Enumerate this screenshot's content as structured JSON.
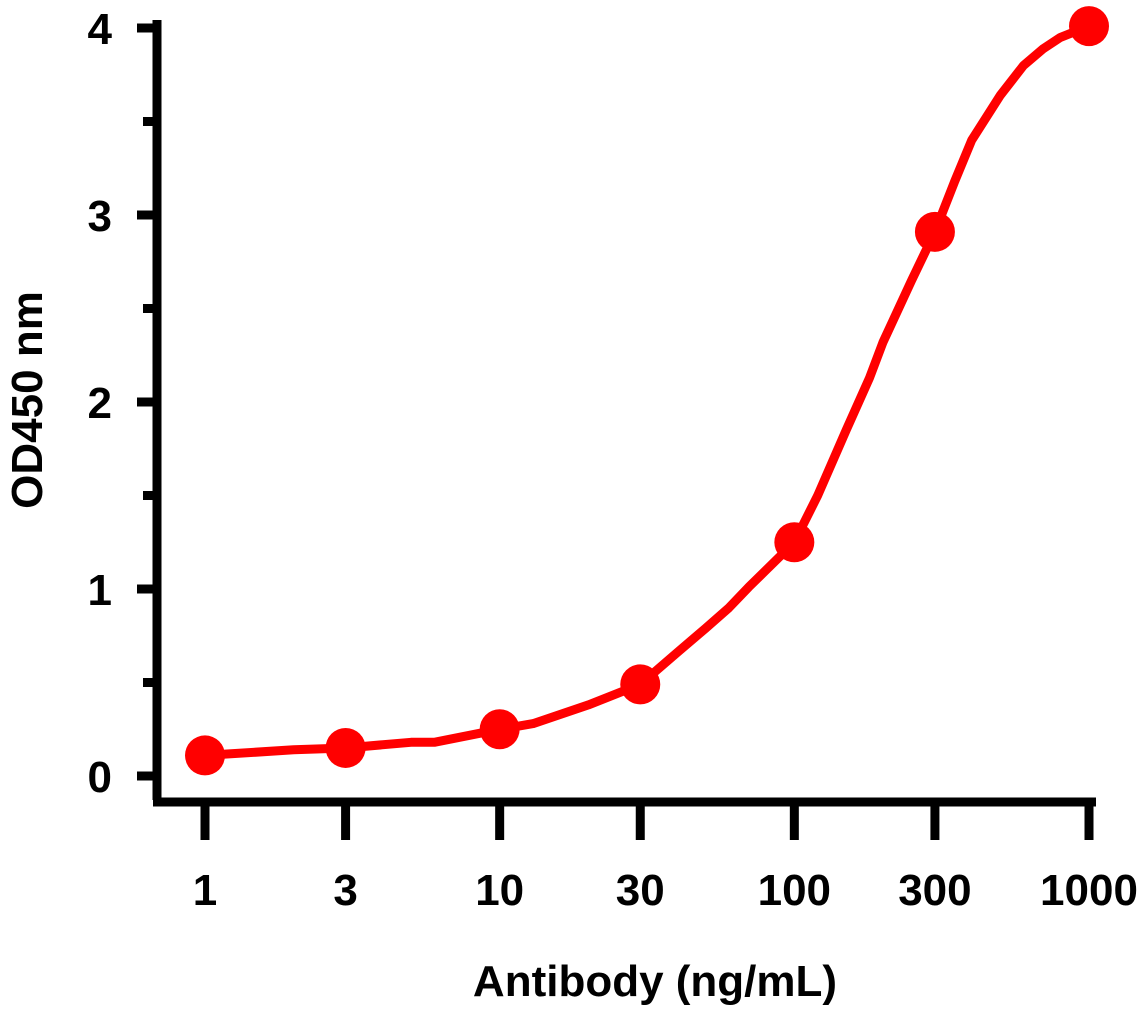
{
  "chart_data": {
    "type": "line",
    "title": "",
    "xlabel": "Antibody (ng/mL)",
    "ylabel": "OD450 nm",
    "x_scale": "log",
    "x_ticks": [
      "1",
      "3",
      "10",
      "30",
      "100",
      "300",
      "1000"
    ],
    "y_ticks": [
      "0",
      "1",
      "2",
      "3",
      "4"
    ],
    "ylim": [
      0,
      4
    ],
    "grid": false,
    "colors": {
      "series": "#ff0000",
      "axis": "#000000"
    },
    "series": [
      {
        "name": "",
        "x": [
          1,
          3,
          10,
          30,
          100,
          300,
          1000
        ],
        "y": [
          0.11,
          0.15,
          0.25,
          0.49,
          1.25,
          2.91,
          4.01
        ],
        "fit_x": [
          1,
          2,
          3,
          5,
          6,
          10,
          13,
          20,
          30,
          40,
          50,
          60,
          70,
          80,
          100,
          120,
          150,
          180,
          200,
          250,
          300,
          350,
          400,
          500,
          600,
          700,
          800,
          1000
        ],
        "fit_y": [
          0.11,
          0.14,
          0.15,
          0.18,
          0.18,
          0.25,
          0.28,
          0.38,
          0.49,
          0.66,
          0.79,
          0.9,
          1.01,
          1.1,
          1.25,
          1.5,
          1.85,
          2.13,
          2.32,
          2.65,
          2.91,
          3.18,
          3.4,
          3.64,
          3.8,
          3.89,
          3.95,
          4.01
        ]
      }
    ]
  }
}
